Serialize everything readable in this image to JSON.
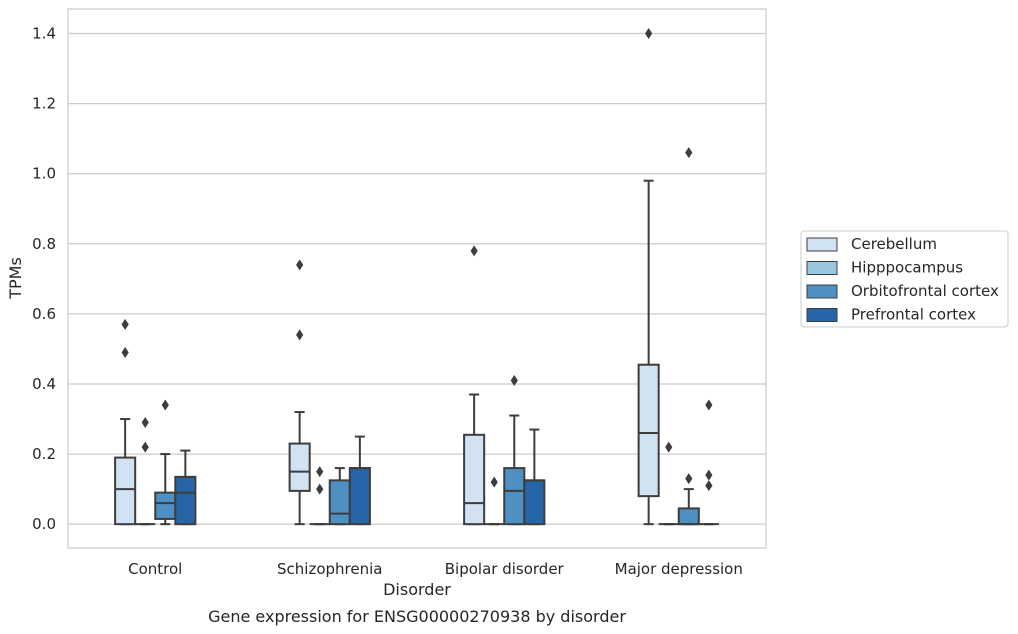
{
  "chart_data": {
    "type": "box",
    "title": "Gene expression for ENSG00000270938 by disorder",
    "xlabel": "Disorder",
    "ylabel": "TPMs",
    "ylim": [
      -0.068,
      1.47
    ],
    "yticks": [
      0.0,
      0.2,
      0.4,
      0.6,
      0.8,
      1.0,
      1.2,
      1.4
    ],
    "ytick_labels": [
      "0.0",
      "0.2",
      "0.4",
      "0.6",
      "0.8",
      "1.0",
      "1.2",
      "1.4"
    ],
    "grid": "horizontal",
    "legend_position": "right",
    "categories": [
      "Control",
      "Schizophrenia",
      "Bipolar disorder",
      "Major depression"
    ],
    "series": [
      {
        "name": "Cerebellum",
        "color": "#d1e2f2",
        "boxes": [
          {
            "whislo": 0.0,
            "q1": 0.0,
            "med": 0.1,
            "q3": 0.19,
            "whishi": 0.3,
            "fliers": [
              0.49,
              0.57
            ]
          },
          {
            "whislo": 0.0,
            "q1": 0.095,
            "med": 0.15,
            "q3": 0.23,
            "whishi": 0.32,
            "fliers": [
              0.54,
              0.74
            ]
          },
          {
            "whislo": 0.0,
            "q1": 0.0,
            "med": 0.06,
            "q3": 0.255,
            "whishi": 0.37,
            "fliers": [
              0.78
            ]
          },
          {
            "whislo": 0.0,
            "q1": 0.08,
            "med": 0.26,
            "q3": 0.455,
            "whishi": 0.98,
            "fliers": [
              1.4
            ]
          }
        ]
      },
      {
        "name": "Hipppocampus",
        "color": "#9ac7e0",
        "boxes": [
          {
            "whislo": 0.0,
            "q1": 0.0,
            "med": 0.0,
            "q3": 0.0,
            "whishi": 0.0,
            "fliers": [
              0.22,
              0.29
            ]
          },
          {
            "whislo": 0.0,
            "q1": 0.0,
            "med": 0.0,
            "q3": 0.0,
            "whishi": 0.0,
            "fliers": [
              0.1,
              0.15
            ]
          },
          {
            "whislo": 0.0,
            "q1": 0.0,
            "med": 0.0,
            "q3": 0.0,
            "whishi": 0.0,
            "fliers": [
              0.12
            ]
          },
          {
            "whislo": 0.0,
            "q1": 0.0,
            "med": 0.0,
            "q3": 0.0,
            "whishi": 0.0,
            "fliers": [
              0.22
            ]
          }
        ]
      },
      {
        "name": "Orbitofrontal cortex",
        "color": "#4f90c3",
        "boxes": [
          {
            "whislo": 0.0,
            "q1": 0.015,
            "med": 0.06,
            "q3": 0.09,
            "whishi": 0.2,
            "fliers": [
              0.34
            ]
          },
          {
            "whislo": 0.0,
            "q1": 0.0,
            "med": 0.03,
            "q3": 0.125,
            "whishi": 0.16,
            "fliers": []
          },
          {
            "whislo": 0.0,
            "q1": 0.0,
            "med": 0.095,
            "q3": 0.16,
            "whishi": 0.31,
            "fliers": [
              0.41
            ]
          },
          {
            "whislo": 0.0,
            "q1": 0.0,
            "med": 0.0,
            "q3": 0.045,
            "whishi": 0.1,
            "fliers": [
              0.13,
              1.06
            ]
          }
        ]
      },
      {
        "name": "Prefrontal cortex",
        "color": "#2565a8",
        "boxes": [
          {
            "whislo": 0.0,
            "q1": 0.0,
            "med": 0.09,
            "q3": 0.135,
            "whishi": 0.21,
            "fliers": []
          },
          {
            "whislo": 0.0,
            "q1": 0.0,
            "med": 0.16,
            "q3": 0.16,
            "whishi": 0.25,
            "fliers": []
          },
          {
            "whislo": 0.0,
            "q1": 0.0,
            "med": 0.125,
            "q3": 0.125,
            "whishi": 0.27,
            "fliers": []
          },
          {
            "whislo": 0.0,
            "q1": 0.0,
            "med": 0.0,
            "q3": 0.0,
            "whishi": 0.0,
            "fliers": [
              0.11,
              0.14,
              0.34
            ]
          }
        ]
      }
    ]
  }
}
